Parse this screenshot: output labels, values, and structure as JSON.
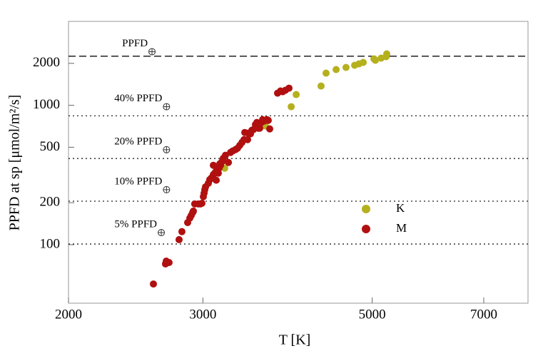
{
  "chart_data": {
    "type": "scatter",
    "xlabel": "T [K]",
    "ylabel": "PPFD at sp [μmol/m²/s]",
    "xlim": [
      2000,
      8000
    ],
    "ylim": [
      38,
      4000
    ],
    "xscale": "log",
    "yscale": "log",
    "xticks": [
      2000,
      3000,
      5000,
      7000
    ],
    "yticks": [
      100,
      200,
      500,
      1000,
      2000
    ],
    "legend": "center right",
    "hlines": [
      {
        "value": 2250,
        "style": "dashed"
      },
      {
        "value": 840,
        "style": "dotted"
      },
      {
        "value": 415,
        "style": "dotted"
      },
      {
        "value": 205,
        "style": "dotted"
      },
      {
        "value": 101,
        "style": "dotted"
      }
    ],
    "annotations": [
      {
        "text": "PPFD",
        "x": 2573,
        "y": 2425
      },
      {
        "text": "40% PPFD",
        "x": 2688,
        "y": 977
      },
      {
        "text": "20% PPFD",
        "x": 2688,
        "y": 480
      },
      {
        "text": "10% PPFD",
        "x": 2688,
        "y": 248
      },
      {
        "text": "5% PPFD",
        "x": 2646,
        "y": 122
      }
    ],
    "series": [
      {
        "name": "K",
        "color": "#b5b01e",
        "x": [
          3204,
          3623,
          3916,
          3975,
          4285,
          4350,
          4484,
          4620,
          4742,
          4804,
          4866,
          5026,
          5048,
          5136,
          5214,
          5224
        ],
        "values": [
          354,
          710,
          977,
          1194,
          1375,
          1702,
          1805,
          1870,
          1937,
          1984,
          2031,
          2155,
          2105,
          2180,
          2233,
          2340
        ]
      },
      {
        "name": "M",
        "color": "#b01010",
        "x": [
          2584,
          2680,
          2709,
          2686,
          2792,
          2816,
          2865,
          2884,
          2896,
          2909,
          2915,
          2927,
          2959,
          2978,
          2991,
          3004,
          3011,
          3017,
          3024,
          3050,
          3063,
          3076,
          3090,
          3096,
          3109,
          3123,
          3136,
          3150,
          3164,
          3096,
          3123,
          3143,
          3157,
          3177,
          3191,
          3211,
          3240,
          3261,
          3282,
          3310,
          3331,
          3353,
          3375,
          3396,
          3404,
          3433,
          3441,
          3463,
          3478,
          3493,
          3515,
          3530,
          3538,
          3546,
          3561,
          3577,
          3592,
          3608,
          3639,
          3654,
          3670,
          3758,
          3791,
          3816,
          3848,
          3890
        ],
        "values": [
          52.2,
          72.7,
          74.4,
          76.2,
          108.6,
          124,
          144,
          155,
          162,
          170,
          174,
          196,
          196,
          196,
          198,
          221,
          234,
          248,
          260,
          276,
          293,
          300,
          307,
          318,
          326,
          337,
          341,
          354,
          371,
          371,
          290,
          326,
          380,
          393,
          417,
          438,
          389,
          459,
          470,
          481,
          492,
          516,
          541,
          567,
          638,
          567,
          631,
          624,
          662,
          669,
          727,
          753,
          745,
          685,
          685,
          753,
          789,
          771,
          789,
          780,
          677,
          1222,
          1267,
          1251,
          1282,
          1327
        ]
      }
    ]
  }
}
